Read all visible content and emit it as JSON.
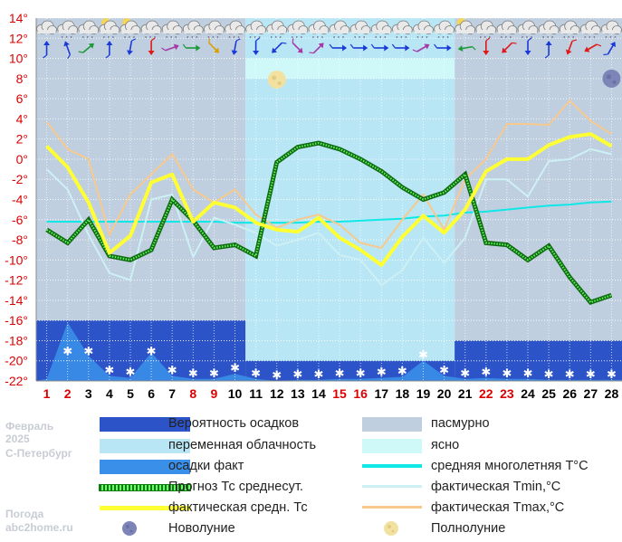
{
  "title_block": {
    "month": "Февраль",
    "year": "2025",
    "city": "С-Петербург"
  },
  "footer_block": {
    "line1": "Погода",
    "line2": "abc2home.ru"
  },
  "legend": {
    "precip_prob": "Вероятность осадков",
    "overcast": "пасмурно",
    "partly_cloudy": "переменная облачность",
    "clear": "ясно",
    "precip_fact": "осадки факт",
    "avg_climate": "средняя многолетняя T°C",
    "forecast_avg": "Прогноз Тс среднесут.",
    "fact_tmin": "фактическая Tmin,°C",
    "fact_avg": "фактическая средн. Тс",
    "fact_tmax": "фактическая Tmax,°C",
    "new_moon": "Новолуние",
    "full_moon": "Полнолуние"
  },
  "colors": {
    "overcast": "#bfcfdf",
    "partly_cloudy": "#b8e6f5",
    "clear": "#cff8f8",
    "precip_prob": "#2c54c8",
    "precip_fact": "#3a8fe8",
    "avg_climate": "#10e8e8",
    "forecast_avg": "#1a9a1a",
    "fact_tmin": "#cdf0f4",
    "fact_avg": "#ffff33",
    "fact_tmax": "#f7c98e",
    "weekend": "#dd0000",
    "weekday": "#000000",
    "axis_text": "#dd0000"
  },
  "chart_data": {
    "type": "line",
    "title": "Февраль 2025 С-Петербург",
    "xlabel": "",
    "ylabel": "°C",
    "ylim": [
      -22,
      14
    ],
    "y_ticks": [
      "14°",
      "12°",
      "10°",
      "8°",
      "6°",
      "4°",
      "2°",
      "0°",
      "-2°",
      "-4°",
      "-6°",
      "-8°",
      "-10°",
      "-12°",
      "-14°",
      "-16°",
      "-18°",
      "-20°",
      "-22°"
    ],
    "days": [
      1,
      2,
      3,
      4,
      5,
      6,
      7,
      8,
      9,
      10,
      11,
      12,
      13,
      14,
      15,
      16,
      17,
      18,
      19,
      20,
      21,
      22,
      23,
      24,
      25,
      26,
      27,
      28
    ],
    "weekend_days": [
      1,
      2,
      8,
      9,
      15,
      16,
      22,
      23
    ],
    "sky_bands": [
      {
        "from_day": 1,
        "to_day": 10,
        "sky": "overcast"
      },
      {
        "from_day": 11,
        "to_day": 20,
        "sky": "partly_cloudy"
      },
      {
        "from_day": 21,
        "to_day": 28,
        "sky": "overcast"
      }
    ],
    "clear_band": {
      "from_day": 11,
      "to_day": 20,
      "upper_temp": 10,
      "lower_temp": 8
    },
    "precip_probability_top": [
      {
        "from_day": 1,
        "to_day": 10,
        "top": -16
      },
      {
        "from_day": 11,
        "to_day": 20,
        "top": -20
      },
      {
        "from_day": 21,
        "to_day": 28,
        "top": -18
      }
    ],
    "precip_fact_top": [
      -21.8,
      -16.2,
      -19.5,
      -21.5,
      -21.7,
      -19.2,
      -21.5,
      -21.8,
      -21.8,
      -21.3,
      -21.8,
      -22,
      -21.9,
      -21.9,
      -21.8,
      -21.8,
      -21.7,
      -21.6,
      -20.0,
      -21.5,
      -21.8,
      -21.7,
      -21.8,
      -21.8,
      -21.9,
      -21.9,
      -21.9,
      -21.9
    ],
    "snow_marks": [
      2,
      3,
      4,
      5,
      6,
      7,
      8,
      9,
      10,
      11,
      12,
      13,
      14,
      15,
      16,
      17,
      18,
      19,
      20,
      21,
      22,
      23,
      24,
      25,
      26,
      27,
      28
    ],
    "series": [
      {
        "name": "средняя многолетняя T°C",
        "key": "avg_climate",
        "values": [
          -6.2,
          -6.2,
          -6.2,
          -6.2,
          -6.2,
          -6.2,
          -6.2,
          -6.2,
          -6.2,
          -6.3,
          -6.3,
          -6.3,
          -6.3,
          -6.2,
          -6.2,
          -6.1,
          -6.0,
          -5.9,
          -5.7,
          -5.6,
          -5.3,
          -5.2,
          -5.0,
          -4.8,
          -4.6,
          -4.5,
          -4.3,
          -4.2
        ]
      },
      {
        "name": "фактическая Tmin,°C",
        "key": "fact_tmin",
        "values": [
          -1,
          -3,
          -7.5,
          -11.3,
          -12,
          -4,
          -3.5,
          -9.7,
          -5.8,
          -6.5,
          -7.3,
          -8.6,
          -8,
          -7.3,
          -9.5,
          -10,
          -12.5,
          -11,
          -7.8,
          -10.3,
          -7.8,
          -2,
          -2,
          -3.7,
          -0.2,
          0,
          1,
          0.5
        ]
      },
      {
        "name": "фактическая Tmax,°C",
        "key": "fact_tmax",
        "values": [
          3.7,
          1,
          0,
          -7.5,
          -3.5,
          -1.5,
          0.5,
          -3,
          -4.3,
          -3,
          -5.5,
          -6.8,
          -6,
          -5.5,
          -6.5,
          -8.3,
          -8.8,
          -6,
          -3.5,
          -7,
          -2,
          0,
          3.5,
          3.5,
          3.4,
          5.8,
          3.8,
          2.5
        ]
      },
      {
        "name": "Прогноз Тс среднесут.",
        "key": "forecast_avg",
        "values": [
          -7,
          -8.3,
          -6,
          -9.6,
          -10,
          -9,
          -4,
          -6.1,
          -8.8,
          -8.5,
          -9.6,
          -0.3,
          1.2,
          1.6,
          1,
          0,
          -1.2,
          -2.8,
          -4,
          -3.3,
          -1.5,
          -8.3,
          -8.5,
          -10,
          -8.6,
          -11.7,
          -14.2,
          -13.5
        ]
      },
      {
        "name": "фактическая средн. Тс",
        "key": "fact_avg",
        "values": [
          1.3,
          -0.8,
          -4.3,
          -9.3,
          -7.6,
          -2.3,
          -1.5,
          -6.2,
          -4.3,
          -4.8,
          -6.3,
          -7,
          -7.2,
          -5.8,
          -7.8,
          -9,
          -10.5,
          -7.7,
          -5.6,
          -7.3,
          -5,
          -1.2,
          0,
          0,
          1.4,
          2.2,
          2.5,
          1.3
        ]
      }
    ],
    "moon_phases": [
      {
        "type": "full_moon",
        "day": 12,
        "temp": 7.9
      },
      {
        "type": "new_moon",
        "day": 28,
        "temp": 8
      }
    ],
    "weather_row": {
      "clouds": [
        "overcast",
        "overcast",
        "overcast",
        "partly",
        "partly",
        "overcast",
        "overcast",
        "overcast",
        "overcast",
        "overcast",
        "overcast",
        "overcast",
        "overcast",
        "overcast",
        "overcast",
        "overcast",
        "overcast",
        "overcast",
        "overcast",
        "overcast",
        "partly",
        "overcast",
        "overcast",
        "overcast",
        "overcast",
        "overcast",
        "overcast",
        "overcast"
      ],
      "snow": [
        false,
        true,
        true,
        true,
        true,
        true,
        true,
        true,
        true,
        true,
        true,
        true,
        true,
        true,
        true,
        true,
        true,
        true,
        true,
        true,
        false,
        true,
        true,
        true,
        true,
        true,
        true,
        true
      ],
      "wind_dir": [
        180,
        160,
        230,
        180,
        10,
        0,
        250,
        270,
        315,
        10,
        0,
        45,
        315,
        225,
        270,
        270,
        270,
        270,
        240,
        270,
        80,
        0,
        45,
        0,
        180,
        20,
        60,
        210
      ],
      "wind_col": [
        "b",
        "b",
        "g",
        "b",
        "b",
        "r",
        "m",
        "g",
        "y",
        "b",
        "b",
        "b",
        "m",
        "m",
        "b",
        "b",
        "b",
        "b",
        "m",
        "b",
        "g",
        "r",
        "r",
        "b",
        "b",
        "r",
        "r",
        "b"
      ]
    }
  }
}
